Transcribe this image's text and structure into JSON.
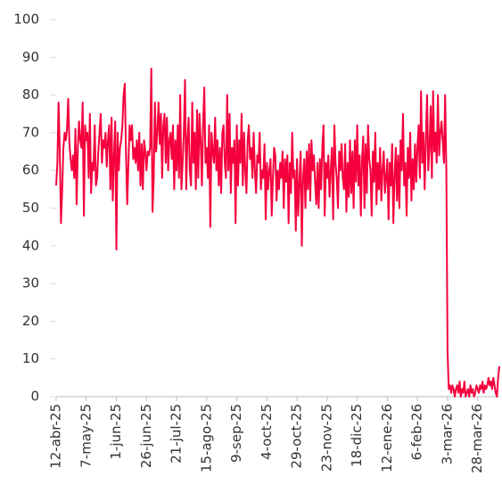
{
  "chart_data": {
    "type": "line",
    "categories": [
      "12-abr-25",
      null,
      null,
      null,
      null,
      null,
      null,
      null,
      null,
      null,
      null,
      null,
      null,
      null,
      null,
      null,
      null,
      null,
      null,
      null,
      null,
      null,
      null,
      null,
      null,
      "7-may-25",
      null,
      null,
      null,
      null,
      null,
      null,
      null,
      null,
      null,
      null,
      null,
      null,
      null,
      null,
      null,
      null,
      null,
      null,
      null,
      null,
      null,
      null,
      null,
      null,
      "1-jun-25",
      null,
      null,
      null,
      null,
      null,
      null,
      null,
      null,
      null,
      null,
      null,
      null,
      null,
      null,
      null,
      null,
      null,
      null,
      null,
      null,
      null,
      null,
      null,
      null,
      "26-jun-25",
      null,
      null,
      null,
      null,
      null,
      null,
      null,
      null,
      null,
      null,
      null,
      null,
      null,
      null,
      null,
      null,
      null,
      null,
      null,
      null,
      null,
      null,
      null,
      null,
      "21-jul-25",
      null,
      null,
      null,
      null,
      null,
      null,
      null,
      null,
      null,
      null,
      null,
      null,
      null,
      null,
      null,
      null,
      null,
      null,
      null,
      null,
      null,
      null,
      null,
      null,
      "15-ago-25",
      null,
      null,
      null,
      null,
      null,
      null,
      null,
      null,
      null,
      null,
      null,
      null,
      null,
      null,
      null,
      null,
      null,
      null,
      null,
      null,
      null,
      null,
      null,
      null,
      "9-sep-25",
      null,
      null,
      null,
      null,
      null,
      null,
      null,
      null,
      null,
      null,
      null,
      null,
      null,
      null,
      null,
      null,
      null,
      null,
      null,
      null,
      null,
      null,
      null,
      null,
      "4-oct-25",
      null,
      null,
      null,
      null,
      null,
      null,
      null,
      null,
      null,
      null,
      null,
      null,
      null,
      null,
      null,
      null,
      null,
      null,
      null,
      null,
      null,
      null,
      null,
      null,
      "29-oct-25",
      null,
      null,
      null,
      null,
      null,
      null,
      null,
      null,
      null,
      null,
      null,
      null,
      null,
      null,
      null,
      null,
      null,
      null,
      null,
      null,
      null,
      null,
      null,
      null,
      "23-nov-25",
      null,
      null,
      null,
      null,
      null,
      null,
      null,
      null,
      null,
      null,
      null,
      null,
      null,
      null,
      null,
      null,
      null,
      null,
      null,
      null,
      null,
      null,
      null,
      null,
      "18-dic-25",
      null,
      null,
      null,
      null,
      null,
      null,
      null,
      null,
      null,
      null,
      null,
      null,
      null,
      null,
      null,
      null,
      null,
      null,
      null,
      null,
      null,
      null,
      null,
      null,
      "12-ene-26",
      null,
      null,
      null,
      null,
      null,
      null,
      null,
      null,
      null,
      null,
      null,
      null,
      null,
      null,
      null,
      null,
      null,
      null,
      null,
      null,
      null,
      null,
      null,
      null,
      "6-feb-26",
      null,
      null,
      null,
      null,
      null,
      null,
      null,
      null,
      null,
      null,
      null,
      null,
      null,
      null,
      null,
      null,
      null,
      null,
      null,
      null,
      null,
      null,
      null,
      null,
      "3-mar-26",
      null,
      null,
      null,
      null,
      null,
      null,
      null,
      null,
      null,
      null,
      null,
      null,
      null,
      null,
      null,
      null,
      null,
      null,
      null,
      null,
      null,
      null,
      null,
      null,
      "28-mar-26",
      null,
      null,
      null,
      null,
      null,
      null,
      null,
      null,
      null,
      null,
      null,
      null,
      null,
      null,
      null,
      null,
      null,
      null
    ],
    "values": [
      56,
      62,
      78,
      65,
      46,
      55,
      66,
      70,
      68,
      71,
      79,
      67,
      63,
      60,
      64,
      58,
      71,
      51,
      66,
      73,
      68,
      66,
      78,
      48,
      72,
      68,
      70,
      58,
      75,
      54,
      62,
      60,
      72,
      56,
      58,
      65,
      70,
      75,
      62,
      68,
      66,
      70,
      61,
      68,
      72,
      55,
      74,
      52,
      64,
      73,
      39,
      70,
      60,
      66,
      68,
      72,
      80,
      83,
      64,
      51,
      62,
      72,
      68,
      72,
      63,
      66,
      62,
      68,
      60,
      70,
      56,
      67,
      55,
      68,
      65,
      60,
      65,
      64,
      66,
      87,
      49,
      58,
      78,
      65,
      70,
      78,
      67,
      75,
      58,
      72,
      75,
      62,
      74,
      60,
      68,
      70,
      63,
      72,
      55,
      68,
      60,
      72,
      58,
      80,
      55,
      62,
      70,
      84,
      55,
      68,
      74,
      60,
      56,
      78,
      62,
      70,
      55,
      76,
      58,
      75,
      68,
      56,
      72,
      82,
      62,
      66,
      58,
      72,
      45,
      70,
      65,
      62,
      74,
      60,
      68,
      56,
      66,
      54,
      70,
      72,
      62,
      58,
      80,
      60,
      75,
      54,
      66,
      62,
      68,
      46,
      72,
      56,
      68,
      62,
      75,
      56,
      70,
      60,
      54,
      68,
      72,
      63,
      66,
      58,
      70,
      60,
      54,
      64,
      62,
      70,
      55,
      60,
      58,
      67,
      47,
      62,
      55,
      60,
      63,
      48,
      58,
      66,
      64,
      52,
      60,
      55,
      62,
      58,
      65,
      50,
      63,
      57,
      64,
      46,
      62,
      54,
      70,
      58,
      60,
      44,
      63,
      48,
      57,
      65,
      40,
      58,
      63,
      50,
      65,
      55,
      67,
      52,
      68,
      60,
      64,
      57,
      51,
      62,
      50,
      63,
      55,
      66,
      72,
      48,
      62,
      58,
      64,
      53,
      60,
      66,
      47,
      72,
      62,
      58,
      50,
      65,
      60,
      67,
      58,
      55,
      67,
      49,
      62,
      53,
      68,
      54,
      65,
      50,
      68,
      57,
      72,
      56,
      64,
      48,
      63,
      69,
      50,
      67,
      54,
      72,
      63,
      60,
      48,
      65,
      57,
      70,
      51,
      62,
      55,
      66,
      52,
      60,
      65,
      54,
      58,
      63,
      47,
      62,
      56,
      67,
      46,
      58,
      66,
      52,
      64,
      50,
      68,
      60,
      75,
      56,
      62,
      48,
      66,
      58,
      70,
      52,
      63,
      55,
      67,
      57,
      66,
      72,
      58,
      81,
      62,
      70,
      55,
      68,
      80,
      60,
      66,
      77,
      58,
      81,
      65,
      70,
      62,
      80,
      64,
      70,
      73,
      68,
      62,
      80,
      60,
      12,
      2,
      3,
      1,
      3,
      2,
      0,
      2,
      3,
      1,
      4,
      0,
      2,
      1,
      4,
      0,
      1,
      2,
      0,
      3,
      1,
      2,
      0,
      1,
      3,
      2,
      1,
      3,
      2,
      4,
      1,
      3,
      2,
      3,
      5,
      3,
      4,
      2,
      5,
      3,
      1,
      0,
      5,
      8
    ],
    "color": "#f5003c",
    "ylim": [
      0,
      100
    ],
    "yticks": [
      0,
      10,
      20,
      30,
      40,
      50,
      60,
      70,
      80,
      90,
      100
    ]
  }
}
